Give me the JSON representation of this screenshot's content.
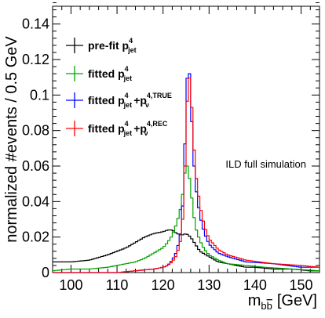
{
  "chart_data": {
    "type": "line",
    "step": true,
    "xlabel_main": "m",
    "xlabel_sub": "b",
    "xlabel_sub_bar": "b",
    "xlabel_unit": "[GeV]",
    "ylabel": "normalized #events / 0.5 GeV",
    "annotation": "ILD full simulation",
    "xlim": [
      96,
      154
    ],
    "ylim": [
      0,
      0.15
    ],
    "x_ticks": [
      100,
      110,
      120,
      130,
      140,
      150
    ],
    "x_tick_labels": [
      "100",
      "110",
      "120",
      "130",
      "140",
      "150"
    ],
    "y_ticks": [
      0,
      0.02,
      0.04,
      0.06,
      0.08,
      0.1,
      0.12,
      0.14
    ],
    "y_tick_labels": [
      "0",
      "0.02",
      "0.04",
      "0.06",
      "0.08",
      "0.1",
      "0.12",
      "0.14"
    ],
    "legend_placement": "top-left",
    "series": [
      {
        "name": "pre-fit",
        "name_main": "pre-fit  p",
        "name_sup": "4",
        "name_sub": "jet",
        "color": "#000000",
        "x": [
          96,
          100,
          104,
          108,
          110,
          112,
          114,
          116,
          118,
          120,
          121,
          122,
          123,
          124,
          125,
          126,
          127,
          128,
          130,
          132,
          134,
          136,
          138,
          140,
          144,
          148,
          152,
          154
        ],
        "y": [
          0.006,
          0.006,
          0.007,
          0.01,
          0.012,
          0.014,
          0.017,
          0.02,
          0.022,
          0.023,
          0.024,
          0.024,
          0.022,
          0.021,
          0.022,
          0.02,
          0.016,
          0.012,
          0.009,
          0.006,
          0.005,
          0.004,
          0.003,
          0.003,
          0.002,
          0.002,
          0.001,
          0.001
        ]
      },
      {
        "name": "fitted",
        "name_main": "fitted  p",
        "name_sup": "4",
        "name_sub": "jet",
        "color": "#00a000",
        "x": [
          96,
          100,
          104,
          108,
          110,
          112,
          114,
          116,
          118,
          120,
          121,
          122,
          123,
          124,
          124.5,
          125,
          125.5,
          126,
          126.5,
          127,
          128,
          129,
          130,
          132,
          134,
          138,
          142,
          148,
          154
        ],
        "y": [
          0.001,
          0.002,
          0.002,
          0.003,
          0.004,
          0.005,
          0.006,
          0.008,
          0.011,
          0.014,
          0.017,
          0.021,
          0.028,
          0.038,
          0.05,
          0.062,
          0.058,
          0.048,
          0.036,
          0.026,
          0.018,
          0.013,
          0.01,
          0.007,
          0.005,
          0.004,
          0.003,
          0.002,
          0.001
        ]
      },
      {
        "name": "fitted +TRUE",
        "name_main": "fitted  p",
        "name_sup": "4",
        "name_sub": "jet",
        "name_main2": "+p",
        "name_sup2": "4,TRUE",
        "name_sub2": "ν",
        "color": "#0000ff",
        "x": [
          96,
          104,
          110,
          114,
          118,
          120,
          121,
          122,
          123,
          124,
          124.5,
          125,
          125.5,
          126,
          126.5,
          127,
          128,
          129,
          130,
          132,
          134,
          138,
          144,
          150,
          154
        ],
        "y": [
          0.0,
          0.0,
          0.0,
          0.001,
          0.002,
          0.003,
          0.004,
          0.007,
          0.012,
          0.025,
          0.05,
          0.095,
          0.124,
          0.1,
          0.07,
          0.05,
          0.032,
          0.022,
          0.016,
          0.011,
          0.009,
          0.006,
          0.005,
          0.003,
          0.003
        ]
      },
      {
        "name": "fitted +REC",
        "name_main": "fitted  p",
        "name_sup": "4",
        "name_sub": "jet",
        "name_main2": "+p",
        "name_sup2": "4,REC",
        "name_sub2": "ν",
        "color": "#ff0000",
        "x": [
          96,
          104,
          110,
          114,
          118,
          120,
          121,
          122,
          123,
          124,
          124.5,
          125,
          125.5,
          126,
          126.5,
          127,
          128,
          129,
          130,
          132,
          134,
          138,
          144,
          150,
          154
        ],
        "y": [
          0.0,
          0.0,
          0.0,
          0.001,
          0.002,
          0.003,
          0.004,
          0.006,
          0.01,
          0.02,
          0.04,
          0.08,
          0.113,
          0.106,
          0.08,
          0.058,
          0.038,
          0.026,
          0.019,
          0.013,
          0.01,
          0.007,
          0.005,
          0.004,
          0.003
        ]
      }
    ]
  }
}
